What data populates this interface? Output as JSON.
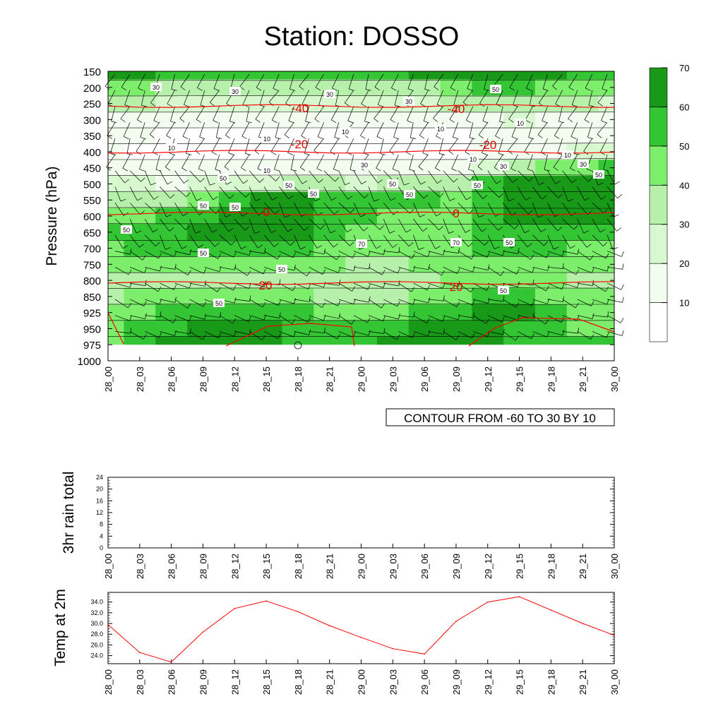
{
  "title": "Station: DOSSO",
  "colors": {
    "levels": [
      "#ffffff",
      "#f2fcef",
      "#d8f8d0",
      "#b7f0aa",
      "#7cee6c",
      "#34c534",
      "#189a18"
    ],
    "contour_line": "#000000",
    "temperature_line": "#ff0000",
    "background": "#ffffff"
  },
  "chart_data": [
    {
      "type": "heatmap",
      "name": "pressure-time-section",
      "ylabel": "Pressure (hPa)",
      "y_ticks": [
        "150",
        "200",
        "250",
        "300",
        "350",
        "400",
        "450",
        "500",
        "550",
        "600",
        "650",
        "700",
        "750",
        "800",
        "850",
        "925",
        "950",
        "975",
        "1000"
      ],
      "x_ticks": [
        "28_00",
        "28_03",
        "28_06",
        "28_09",
        "28_12",
        "28_15",
        "28_18",
        "28_21",
        "29_00",
        "29_03",
        "29_06",
        "29_09",
        "29_12",
        "29_15",
        "29_18",
        "29_21",
        "30_00"
      ],
      "contour_note": "CONTOUR FROM -60 TO 30 BY 10",
      "colorbar_labels": [
        "10",
        "20",
        "30",
        "40",
        "50",
        "60",
        "70"
      ],
      "temperature_contour_labels": [
        "-40",
        "-40",
        "-20",
        "-20",
        "0",
        "0",
        "20",
        "20"
      ],
      "humidity_contour_labels": [
        "30",
        "30",
        "30",
        "30",
        "50",
        "10",
        "10",
        "10",
        "10",
        "10",
        "10",
        "10",
        "10",
        "30",
        "30",
        "30",
        "50",
        "50",
        "50",
        "50",
        "50",
        "50",
        "50",
        "50",
        "50",
        "50",
        "50",
        "70",
        "70",
        "50",
        "50",
        "50",
        "50"
      ],
      "humidity_field": {
        "levels": [
          150,
          200,
          250,
          300,
          350,
          400,
          450,
          500,
          550,
          600,
          650,
          700,
          750,
          800,
          850,
          925,
          950,
          975
        ],
        "times": [
          "28_00",
          "28_03",
          "28_06",
          "28_09",
          "28_12",
          "28_15",
          "28_18",
          "28_21",
          "29_00",
          "29_03",
          "29_06",
          "29_09",
          "29_12",
          "29_15",
          "29_18",
          "29_21",
          "30_00"
        ],
        "values": [
          [
            62,
            60,
            58,
            56,
            55,
            55,
            55,
            55,
            56,
            58,
            60,
            62,
            64,
            66,
            60,
            56,
            52
          ],
          [
            45,
            42,
            38,
            34,
            32,
            30,
            30,
            32,
            34,
            36,
            38,
            42,
            50,
            52,
            46,
            42,
            40
          ],
          [
            32,
            30,
            28,
            26,
            24,
            22,
            22,
            24,
            26,
            28,
            28,
            30,
            34,
            36,
            32,
            30,
            28
          ],
          [
            18,
            16,
            14,
            13,
            12,
            12,
            12,
            12,
            13,
            14,
            14,
            15,
            18,
            20,
            18,
            16,
            15
          ],
          [
            12,
            10,
            8,
            8,
            8,
            8,
            8,
            8,
            8,
            8,
            8,
            9,
            12,
            14,
            12,
            11,
            10
          ],
          [
            10,
            8,
            6,
            6,
            6,
            6,
            6,
            6,
            6,
            6,
            7,
            8,
            11,
            14,
            18,
            22,
            26
          ],
          [
            14,
            12,
            10,
            10,
            10,
            10,
            10,
            10,
            10,
            10,
            12,
            14,
            20,
            30,
            40,
            46,
            52
          ],
          [
            22,
            20,
            18,
            20,
            24,
            28,
            30,
            30,
            28,
            30,
            34,
            38,
            50,
            60,
            64,
            64,
            64
          ],
          [
            30,
            32,
            36,
            42,
            52,
            60,
            60,
            58,
            55,
            56,
            52,
            48,
            58,
            66,
            68,
            68,
            66
          ],
          [
            40,
            44,
            50,
            56,
            62,
            64,
            62,
            58,
            52,
            48,
            46,
            48,
            55,
            62,
            64,
            62,
            60
          ],
          [
            50,
            54,
            58,
            64,
            70,
            66,
            60,
            52,
            48,
            46,
            46,
            48,
            52,
            56,
            58,
            56,
            54
          ],
          [
            46,
            50,
            52,
            54,
            56,
            54,
            50,
            48,
            44,
            42,
            42,
            46,
            50,
            52,
            50,
            48,
            46
          ],
          [
            40,
            44,
            46,
            46,
            46,
            44,
            42,
            40,
            38,
            38,
            40,
            44,
            48,
            48,
            44,
            42,
            40
          ],
          [
            34,
            36,
            38,
            38,
            36,
            34,
            32,
            30,
            30,
            34,
            38,
            42,
            44,
            44,
            40,
            36,
            34
          ],
          [
            38,
            40,
            42,
            44,
            46,
            44,
            40,
            38,
            36,
            38,
            42,
            46,
            52,
            58,
            48,
            42,
            40
          ],
          [
            44,
            46,
            50,
            56,
            58,
            54,
            50,
            48,
            46,
            48,
            52,
            58,
            62,
            60,
            50,
            46,
            44
          ],
          [
            46,
            52,
            58,
            68,
            72,
            62,
            54,
            50,
            50,
            56,
            62,
            68,
            64,
            56,
            50,
            48,
            48
          ],
          [
            48,
            54,
            60,
            70,
            74,
            64,
            56,
            52,
            54,
            60,
            66,
            70,
            64,
            56,
            52,
            50,
            50
          ]
        ]
      },
      "temperature_isotherms": [
        {
          "label": "-40",
          "pressure": 258
        },
        {
          "label": "-20",
          "pressure": 400
        },
        {
          "label": "0",
          "pressure": 592
        },
        {
          "label": "20",
          "pressure": 808
        }
      ]
    },
    {
      "type": "line",
      "name": "rain",
      "ylabel": "3hr rain total",
      "y_ticks": [
        "0",
        "4",
        "8",
        "12",
        "16",
        "20",
        "24"
      ],
      "ylim": [
        0,
        24
      ],
      "x_ticks": [
        "28_00",
        "28_03",
        "28_06",
        "28_09",
        "28_12",
        "28_15",
        "28_18",
        "28_21",
        "29_00",
        "29_03",
        "29_06",
        "29_09",
        "29_12",
        "29_15",
        "29_18",
        "29_21",
        "30_00"
      ],
      "values": [
        0,
        0,
        0,
        0,
        0,
        0,
        0,
        0,
        0,
        0,
        0,
        0,
        0,
        0,
        0,
        0,
        0
      ]
    },
    {
      "type": "line",
      "name": "temperature",
      "ylabel": "Temp at 2m",
      "y_ticks": [
        "24.0",
        "26.0",
        "28.0",
        "30.0",
        "32.0",
        "34.0"
      ],
      "ylim": [
        22.5,
        35.8
      ],
      "x_ticks": [
        "28_00",
        "28_03",
        "28_06",
        "28_09",
        "28_12",
        "28_15",
        "28_18",
        "28_21",
        "29_00",
        "29_03",
        "29_06",
        "29_09",
        "29_12",
        "29_15",
        "29_18",
        "29_21",
        "30_00"
      ],
      "values": [
        29.8,
        24.6,
        22.8,
        28.4,
        32.8,
        34.2,
        32.2,
        29.6,
        27.4,
        25.3,
        24.3,
        30.4,
        34.0,
        35.0,
        32.5,
        30.0,
        27.8
      ]
    }
  ]
}
